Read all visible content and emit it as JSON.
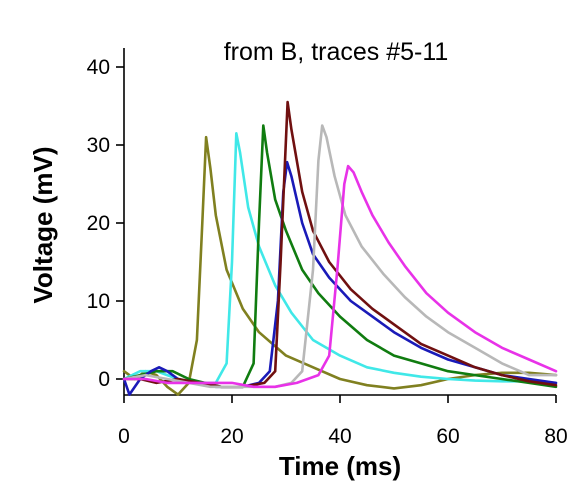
{
  "chart_data": {
    "type": "line",
    "title": "from B, traces #5-11",
    "xlabel": "Time (ms)",
    "ylabel": "Voltage (mV)",
    "xlim": [
      0,
      80
    ],
    "ylim": [
      -2,
      42
    ],
    "xticks": [
      0,
      20,
      40,
      60,
      80
    ],
    "yticks": [
      0,
      10,
      20,
      30,
      40
    ],
    "grid": false,
    "legend": "none",
    "series": [
      {
        "color": "#808020",
        "points": [
          [
            0,
            1
          ],
          [
            2,
            0
          ],
          [
            4,
            1
          ],
          [
            6,
            0.5
          ],
          [
            8,
            -1
          ],
          [
            10,
            -2
          ],
          [
            12,
            -0.5
          ],
          [
            13.5,
            5
          ],
          [
            14.5,
            20
          ],
          [
            15.2,
            31
          ],
          [
            16,
            27
          ],
          [
            17,
            21
          ],
          [
            19,
            14
          ],
          [
            22,
            9
          ],
          [
            25,
            6
          ],
          [
            30,
            3
          ],
          [
            35,
            1.5
          ],
          [
            40,
            0
          ],
          [
            45,
            -0.8
          ],
          [
            50,
            -1.2
          ],
          [
            55,
            -0.8
          ],
          [
            60,
            0
          ],
          [
            65,
            0.5
          ],
          [
            70,
            0.8
          ],
          [
            75,
            0.8
          ],
          [
            80,
            0.5
          ]
        ]
      },
      {
        "color": "#40E8E8",
        "points": [
          [
            0,
            0
          ],
          [
            3,
            1
          ],
          [
            6,
            1
          ],
          [
            8,
            0.5
          ],
          [
            10,
            0
          ],
          [
            14,
            -0.5
          ],
          [
            17,
            -0.5
          ],
          [
            19,
            2
          ],
          [
            20,
            15
          ],
          [
            20.8,
            31.5
          ],
          [
            21.5,
            29
          ],
          [
            23,
            22
          ],
          [
            25,
            17
          ],
          [
            28,
            12
          ],
          [
            31,
            8.5
          ],
          [
            35,
            5
          ],
          [
            40,
            3
          ],
          [
            45,
            1.5
          ],
          [
            50,
            0.8
          ],
          [
            55,
            0.3
          ],
          [
            60,
            0
          ],
          [
            65,
            -0.2
          ],
          [
            70,
            -0.3
          ],
          [
            75,
            -0.3
          ],
          [
            80,
            -0.5
          ]
        ]
      },
      {
        "color": "#107C10",
        "points": [
          [
            0,
            0
          ],
          [
            3,
            0.5
          ],
          [
            6,
            1
          ],
          [
            9,
            1
          ],
          [
            12,
            0
          ],
          [
            15,
            -0.5
          ],
          [
            18,
            -1
          ],
          [
            22,
            -1
          ],
          [
            24,
            2
          ],
          [
            25,
            20
          ],
          [
            25.8,
            32.5
          ],
          [
            26.5,
            29
          ],
          [
            28,
            23
          ],
          [
            30,
            19
          ],
          [
            33,
            14
          ],
          [
            36,
            11
          ],
          [
            40,
            8
          ],
          [
            45,
            5
          ],
          [
            50,
            3
          ],
          [
            55,
            2
          ],
          [
            60,
            1
          ],
          [
            65,
            0.5
          ],
          [
            70,
            0
          ],
          [
            75,
            -0.5
          ],
          [
            80,
            -1
          ]
        ]
      },
      {
        "color": "#1A1AB8",
        "points": [
          [
            0,
            0
          ],
          [
            1,
            -2
          ],
          [
            3,
            0
          ],
          [
            5,
            1
          ],
          [
            6.5,
            1.5
          ],
          [
            8,
            1
          ],
          [
            10,
            0
          ],
          [
            13,
            -0.5
          ],
          [
            17,
            -1
          ],
          [
            22,
            -1
          ],
          [
            25,
            -0.5
          ],
          [
            27,
            1
          ],
          [
            28.5,
            10
          ],
          [
            29.5,
            24
          ],
          [
            30.2,
            27.8
          ],
          [
            31,
            26
          ],
          [
            33,
            20
          ],
          [
            35,
            16
          ],
          [
            38,
            13
          ],
          [
            42,
            10
          ],
          [
            46,
            8
          ],
          [
            50,
            6
          ],
          [
            55,
            4
          ],
          [
            60,
            2.5
          ],
          [
            65,
            1.5
          ],
          [
            70,
            0.5
          ],
          [
            75,
            0
          ],
          [
            80,
            -0.5
          ]
        ]
      },
      {
        "color": "#701010",
        "points": [
          [
            0,
            0
          ],
          [
            3,
            0
          ],
          [
            6,
            -0.5
          ],
          [
            10,
            0
          ],
          [
            14,
            -0.5
          ],
          [
            18,
            -1
          ],
          [
            22,
            -1
          ],
          [
            26,
            -0.5
          ],
          [
            28,
            1
          ],
          [
            29,
            15
          ],
          [
            30.3,
            35.5
          ],
          [
            31,
            32
          ],
          [
            33,
            24
          ],
          [
            35,
            19
          ],
          [
            38,
            15
          ],
          [
            42,
            11.5
          ],
          [
            46,
            9
          ],
          [
            50,
            7
          ],
          [
            55,
            4.5
          ],
          [
            60,
            3
          ],
          [
            65,
            1.5
          ],
          [
            70,
            0.5
          ],
          [
            75,
            -0.3
          ],
          [
            80,
            -0.8
          ]
        ]
      },
      {
        "color": "#B8B8B8",
        "points": [
          [
            0,
            0
          ],
          [
            4,
            0.5
          ],
          [
            8,
            0
          ],
          [
            12,
            -0.5
          ],
          [
            16,
            -1
          ],
          [
            20,
            -1
          ],
          [
            24,
            -1
          ],
          [
            28,
            -1
          ],
          [
            31,
            -0.5
          ],
          [
            33,
            1
          ],
          [
            35,
            14
          ],
          [
            36,
            28
          ],
          [
            36.7,
            32.5
          ],
          [
            37.5,
            31
          ],
          [
            39,
            26
          ],
          [
            41,
            21
          ],
          [
            44,
            17
          ],
          [
            48,
            13.5
          ],
          [
            52,
            10.5
          ],
          [
            56,
            8
          ],
          [
            60,
            6
          ],
          [
            65,
            4
          ],
          [
            70,
            2
          ],
          [
            75,
            0.5
          ],
          [
            80,
            0.5
          ]
        ]
      },
      {
        "color": "#E832E8",
        "points": [
          [
            0,
            0
          ],
          [
            4,
            0
          ],
          [
            8,
            -0.5
          ],
          [
            12,
            -0.5
          ],
          [
            16,
            -0.5
          ],
          [
            20,
            -0.5
          ],
          [
            24,
            -1
          ],
          [
            28,
            -1
          ],
          [
            32,
            -0.5
          ],
          [
            36,
            0.5
          ],
          [
            38,
            3
          ],
          [
            39.5,
            14
          ],
          [
            40.8,
            25
          ],
          [
            41.5,
            27.3
          ],
          [
            42.5,
            26.5
          ],
          [
            44,
            24
          ],
          [
            46,
            21
          ],
          [
            49,
            17.5
          ],
          [
            52,
            14.5
          ],
          [
            56,
            11
          ],
          [
            60,
            8.5
          ],
          [
            65,
            6
          ],
          [
            70,
            4
          ],
          [
            75,
            2.5
          ],
          [
            80,
            1
          ]
        ]
      }
    ]
  }
}
